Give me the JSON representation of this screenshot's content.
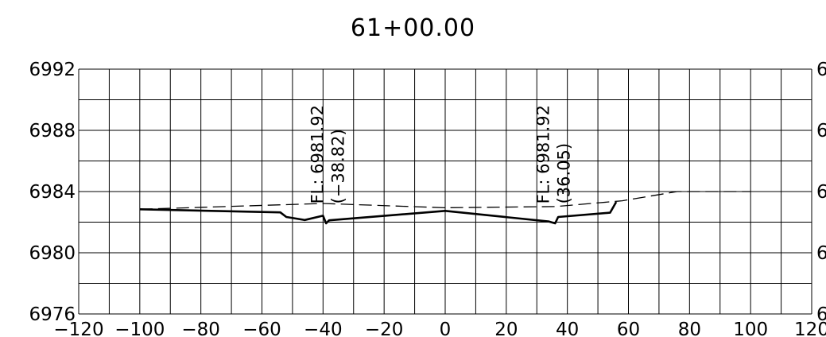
{
  "chart_data": {
    "type": "line",
    "title": "61+00.00",
    "xlabel": "",
    "ylabel": "",
    "xlim": [
      -120,
      120
    ],
    "ylim": [
      6976,
      6992
    ],
    "x_ticks": [
      -120,
      -100,
      -80,
      -60,
      -40,
      -20,
      0,
      20,
      40,
      60,
      80,
      100,
      120
    ],
    "x_tick_labels": [
      "-120",
      "-100",
      "-80",
      "-60",
      "-40",
      "-20",
      "0",
      "20",
      "40",
      "60",
      "80",
      "100",
      "120"
    ],
    "y_ticks": [
      6976,
      6980,
      6984,
      6988,
      6992
    ],
    "y_tick_labels": [
      "6976",
      "6980",
      "6984",
      "6988",
      "6992"
    ],
    "right_tick_labels": [
      "6",
      "6",
      "6",
      "6",
      "6"
    ],
    "grid": true,
    "series": [
      {
        "style": "solid",
        "points": [
          [
            -100,
            6982.84
          ],
          [
            -54,
            6982.64
          ],
          [
            -52,
            6982.34
          ],
          [
            -46,
            6982.14
          ],
          [
            -40,
            6982.42
          ],
          [
            -39,
            6981.92
          ],
          [
            -38,
            6982.12
          ],
          [
            0,
            6982.74
          ],
          [
            34,
            6982.04
          ],
          [
            36,
            6981.92
          ],
          [
            37,
            6982.34
          ],
          [
            54,
            6982.62
          ],
          [
            56,
            6983.32
          ]
        ]
      },
      {
        "style": "dashed",
        "points": [
          [
            -100,
            6982.84
          ],
          [
            -40,
            6983.22
          ],
          [
            0,
            6982.94
          ],
          [
            36,
            6983.02
          ],
          [
            58,
            6983.4
          ],
          [
            76,
            6984.0
          ],
          [
            100,
            6984.0
          ]
        ]
      }
    ],
    "annotations": [
      {
        "x": -40,
        "y": 6983.2,
        "line1": "FL: 6981.92",
        "line2": "(-38.82)"
      },
      {
        "x": 34,
        "y": 6983.2,
        "line1": "FL: 6981.92",
        "line2": "(36.05)"
      }
    ]
  }
}
